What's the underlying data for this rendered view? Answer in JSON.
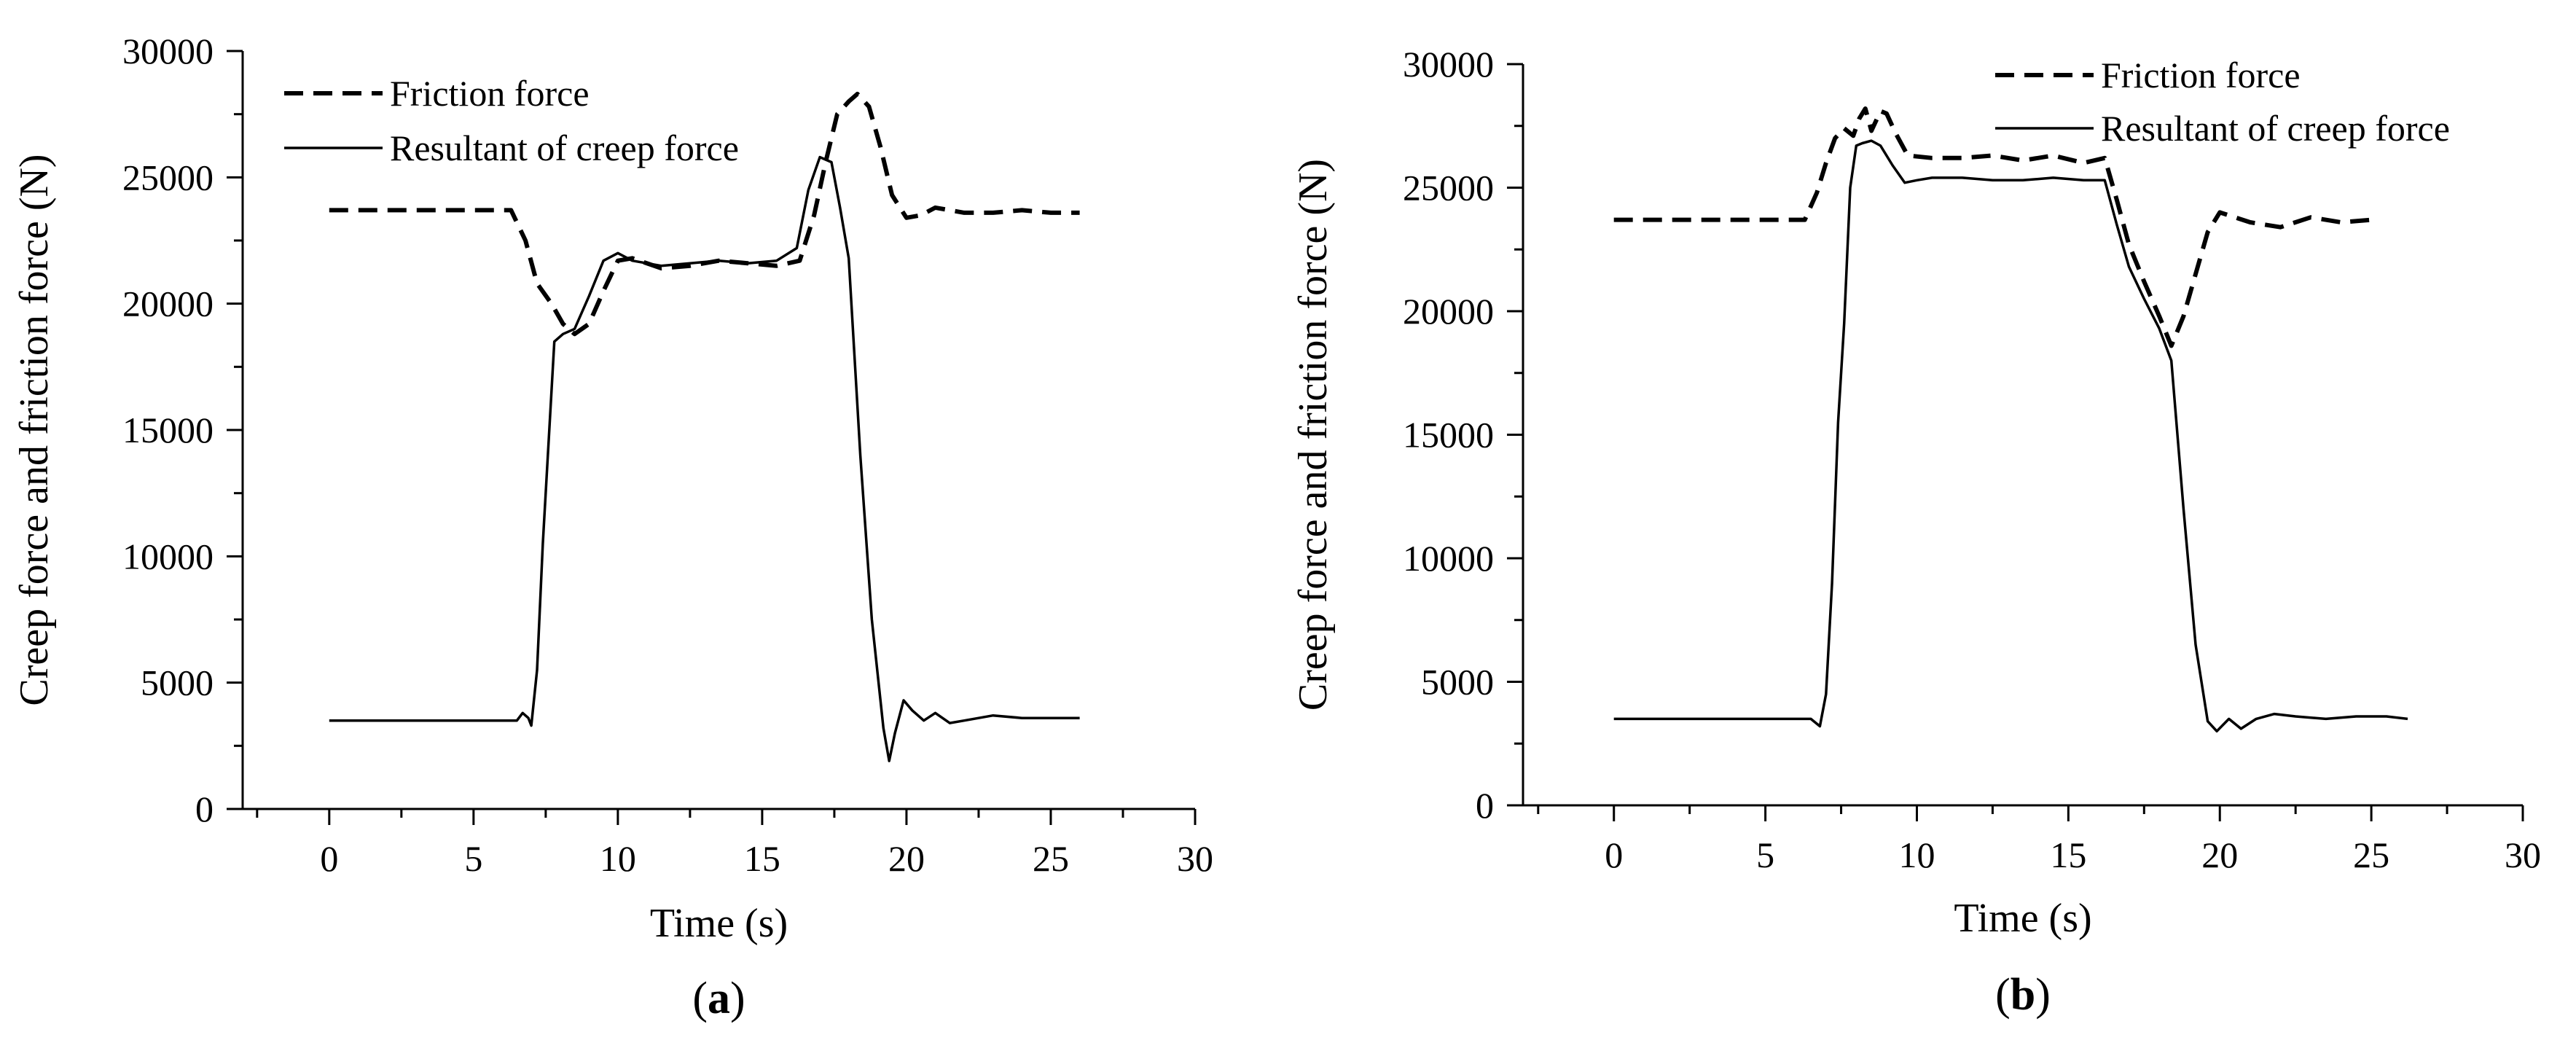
{
  "chart_data": [
    {
      "type": "line",
      "panel_label": "a",
      "xlabel": "Time (s)",
      "ylabel": "Creep force and friction force (N)",
      "xlim": [
        -3,
        30
      ],
      "ylim": [
        0,
        30000
      ],
      "xticks": [
        0,
        5,
        10,
        15,
        20,
        25,
        30
      ],
      "yticks": [
        0,
        5000,
        10000,
        15000,
        20000,
        25000,
        30000
      ],
      "legend_position": "top-left",
      "series": [
        {
          "name": "Friction force",
          "style": "dashed",
          "x": [
            0,
            6.3,
            6.8,
            7.2,
            7.7,
            8.1,
            8.5,
            9.0,
            9.5,
            10.0,
            10.5,
            11.5,
            12.5,
            13.5,
            14.5,
            15.5,
            16.3,
            16.8,
            17.2,
            17.6,
            18.0,
            18.3,
            18.7,
            19.1,
            19.5,
            20.0,
            20.5,
            21.0,
            22.0,
            23.0,
            24.0,
            25.0,
            26.0
          ],
          "y": [
            23700,
            23700,
            22500,
            20800,
            20000,
            19200,
            18800,
            19200,
            20500,
            21700,
            21800,
            21400,
            21500,
            21700,
            21600,
            21500,
            21700,
            23500,
            25600,
            27500,
            28000,
            28300,
            27800,
            26200,
            24300,
            23400,
            23500,
            23800,
            23600,
            23600,
            23700,
            23600,
            23600
          ]
        },
        {
          "name": "Resultant of creep force",
          "style": "solid",
          "x": [
            0,
            6.5,
            6.7,
            6.9,
            7.0,
            7.2,
            7.4,
            7.6,
            7.8,
            8.1,
            8.5,
            9.0,
            9.5,
            10.0,
            10.5,
            11.5,
            12.5,
            13.5,
            14.5,
            15.5,
            16.2,
            16.6,
            17.0,
            17.4,
            17.7,
            18.0,
            18.4,
            18.8,
            19.2,
            19.4,
            19.6,
            19.9,
            20.2,
            20.6,
            21.0,
            21.5,
            22.0,
            22.5,
            23.0,
            24.0,
            25.0,
            26.0
          ],
          "y": [
            3500,
            3500,
            3800,
            3600,
            3300,
            5500,
            10500,
            14500,
            18500,
            18800,
            19000,
            20300,
            21700,
            22000,
            21700,
            21500,
            21600,
            21700,
            21600,
            21700,
            22200,
            24500,
            25800,
            25600,
            23800,
            21800,
            14000,
            7500,
            3200,
            1900,
            3000,
            4300,
            3900,
            3500,
            3800,
            3400,
            3500,
            3600,
            3700,
            3600,
            3600,
            3600
          ]
        }
      ]
    },
    {
      "type": "line",
      "panel_label": "b",
      "xlabel": "Time (s)",
      "ylabel": "Creep force and friction force (N)",
      "xlim": [
        -3,
        30
      ],
      "ylim": [
        0,
        30000
      ],
      "xticks": [
        0,
        5,
        10,
        15,
        20,
        25,
        30
      ],
      "yticks": [
        0,
        5000,
        10000,
        15000,
        20000,
        25000,
        30000
      ],
      "legend_position": "top-right",
      "series": [
        {
          "name": "Friction force",
          "style": "dashed",
          "x": [
            0,
            6.3,
            6.7,
            7.0,
            7.3,
            7.6,
            7.9,
            8.1,
            8.3,
            8.5,
            8.8,
            9.0,
            9.3,
            9.7,
            10.5,
            11.5,
            12.5,
            13.5,
            14.5,
            15.5,
            16.2,
            16.6,
            17.0,
            17.5,
            18.0,
            18.4,
            18.8,
            19.2,
            19.6,
            20.0,
            20.5,
            21.0,
            22.0,
            23.0,
            24.0,
            25.0
          ],
          "y": [
            23700,
            23700,
            24800,
            26000,
            27000,
            27400,
            27100,
            27800,
            28200,
            27300,
            28100,
            28000,
            27200,
            26300,
            26200,
            26200,
            26300,
            26100,
            26300,
            26000,
            26200,
            24500,
            22700,
            21200,
            19800,
            18600,
            19800,
            21500,
            23200,
            24000,
            23800,
            23600,
            23400,
            23800,
            23600,
            23700
          ]
        },
        {
          "name": "Resultant of creep force",
          "style": "solid",
          "x": [
            0,
            6.5,
            6.8,
            7.0,
            7.2,
            7.4,
            7.6,
            7.8,
            8.0,
            8.2,
            8.5,
            8.8,
            9.2,
            9.6,
            10.0,
            10.5,
            11.5,
            12.5,
            13.5,
            14.5,
            15.5,
            16.2,
            16.6,
            17.0,
            17.5,
            18.0,
            18.4,
            18.8,
            19.2,
            19.6,
            19.9,
            20.3,
            20.7,
            21.2,
            21.8,
            22.5,
            23.5,
            24.5,
            25.5,
            26.2
          ],
          "y": [
            3500,
            3500,
            3200,
            4500,
            9000,
            15500,
            19500,
            25000,
            26700,
            26800,
            26900,
            26700,
            25900,
            25200,
            25300,
            25400,
            25400,
            25300,
            25300,
            25400,
            25300,
            25300,
            23500,
            21800,
            20500,
            19300,
            18000,
            12000,
            6500,
            3400,
            3000,
            3500,
            3100,
            3500,
            3700,
            3600,
            3500,
            3600,
            3600,
            3500
          ]
        }
      ]
    }
  ]
}
